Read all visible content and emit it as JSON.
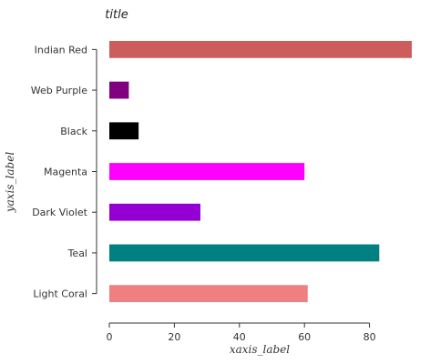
{
  "chart_data": {
    "type": "bar",
    "orientation": "horizontal",
    "title": "title",
    "xlabel": "xaxis_label",
    "ylabel": "yaxis_label",
    "categories": [
      "Light Coral",
      "Teal",
      "Dark Violet",
      "Magenta",
      "Black",
      "Web Purple",
      "Indian Red"
    ],
    "values": [
      61,
      83,
      28,
      60,
      9,
      6,
      93
    ],
    "colors": [
      "#f08080",
      "#008080",
      "#9400d3",
      "#ff00ff",
      "#000000",
      "#800080",
      "#cd5c5c"
    ],
    "xlim": [
      0,
      93
    ],
    "xticks": [
      0,
      20,
      40,
      60,
      80
    ],
    "grid": false,
    "legend": "none"
  }
}
